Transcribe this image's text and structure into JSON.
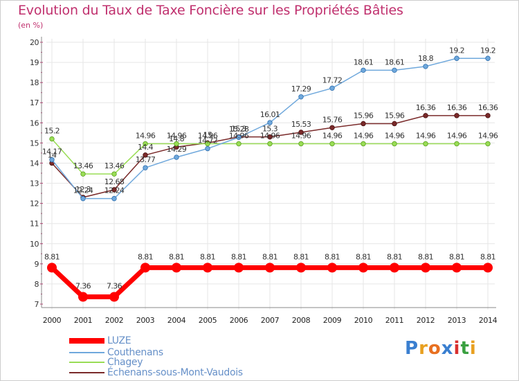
{
  "title": "Evolution du Taux de Taxe Foncière sur les Propriétés Bâties",
  "unit_label": "(en %)",
  "logo": {
    "text": "Proxiti",
    "letters": [
      {
        "ch": "P",
        "color": "#3a7fd0"
      },
      {
        "ch": "r",
        "color": "#e8a020"
      },
      {
        "ch": "o",
        "color": "#e87020"
      },
      {
        "ch": "x",
        "color": "#3a7fd0"
      },
      {
        "ch": "i",
        "color": "#d83030"
      },
      {
        "ch": "t",
        "color": "#3aa040"
      },
      {
        "ch": "i",
        "color": "#e8a020"
      }
    ]
  },
  "chart_data": {
    "type": "line",
    "title": "Evolution du Taux de Taxe Foncière sur les Propriétés Bâties",
    "ylabel": "(en %)",
    "xlabel": "",
    "ylim": [
      7,
      20
    ],
    "yticks": [
      7,
      8,
      9,
      10,
      11,
      12,
      13,
      14,
      15,
      16,
      17,
      18,
      19,
      20
    ],
    "categories": [
      "2000",
      "2001",
      "2002",
      "2003",
      "2004",
      "2005",
      "2006",
      "2007",
      "2008",
      "2009",
      "2010",
      "2011",
      "2012",
      "2013",
      "2014"
    ],
    "series": [
      {
        "name": "LUZE",
        "color": "#ff0000",
        "labels": [
          "8.81",
          "7.36",
          "7.36",
          "8.81",
          "8.81",
          "8.81",
          "8.81",
          "8.81",
          "8.81",
          "8.81",
          "8.81",
          "8.81",
          "8.81",
          "8.81",
          "8.81"
        ],
        "values": [
          8.81,
          7.36,
          7.36,
          8.81,
          8.81,
          8.81,
          8.81,
          8.81,
          8.81,
          8.81,
          8.81,
          8.81,
          8.81,
          8.81,
          8.81
        ]
      },
      {
        "name": "Couthenans",
        "color": "#6fa8dc",
        "labels": [
          "14.17",
          "12.24",
          "12.24",
          "13.77",
          "14.29",
          "14.72",
          "15.28",
          "16.01",
          "17.29",
          "17.72",
          "18.61",
          "18.61",
          "18.8",
          "19.2",
          "19.2"
        ],
        "values": [
          14.17,
          12.24,
          12.24,
          13.77,
          14.29,
          14.72,
          15.28,
          16.01,
          17.29,
          17.72,
          18.61,
          18.61,
          18.8,
          19.2,
          19.2
        ]
      },
      {
        "name": "Chagey",
        "color": "#99dd55",
        "labels": [
          "15.2",
          "13.46",
          "13.46",
          "14.96",
          "14.96",
          "14.96",
          "14.96",
          "14.96",
          "14.96",
          "14.96",
          "14.96",
          "14.96",
          "14.96",
          "14.96",
          "14.96"
        ],
        "values": [
          15.2,
          13.46,
          13.46,
          14.96,
          14.96,
          14.96,
          14.96,
          14.96,
          14.96,
          14.96,
          14.96,
          14.96,
          14.96,
          14.96,
          14.96
        ]
      },
      {
        "name": "Échenans-sous-Mont-Vaudois",
        "color": "#7a2a2a",
        "labels": [
          "14",
          "12.3",
          "12.68",
          "14.4",
          "14.8",
          "15",
          "15.3",
          "15.3",
          "15.53",
          "15.76",
          "15.96",
          "15.96",
          "16.36",
          "16.36",
          "16.36"
        ],
        "values": [
          14,
          12.3,
          12.68,
          14.4,
          14.8,
          15,
          15.3,
          15.3,
          15.53,
          15.76,
          15.96,
          15.96,
          16.36,
          16.36,
          16.36
        ]
      }
    ],
    "legend_position": "bottom-left",
    "grid": true
  }
}
